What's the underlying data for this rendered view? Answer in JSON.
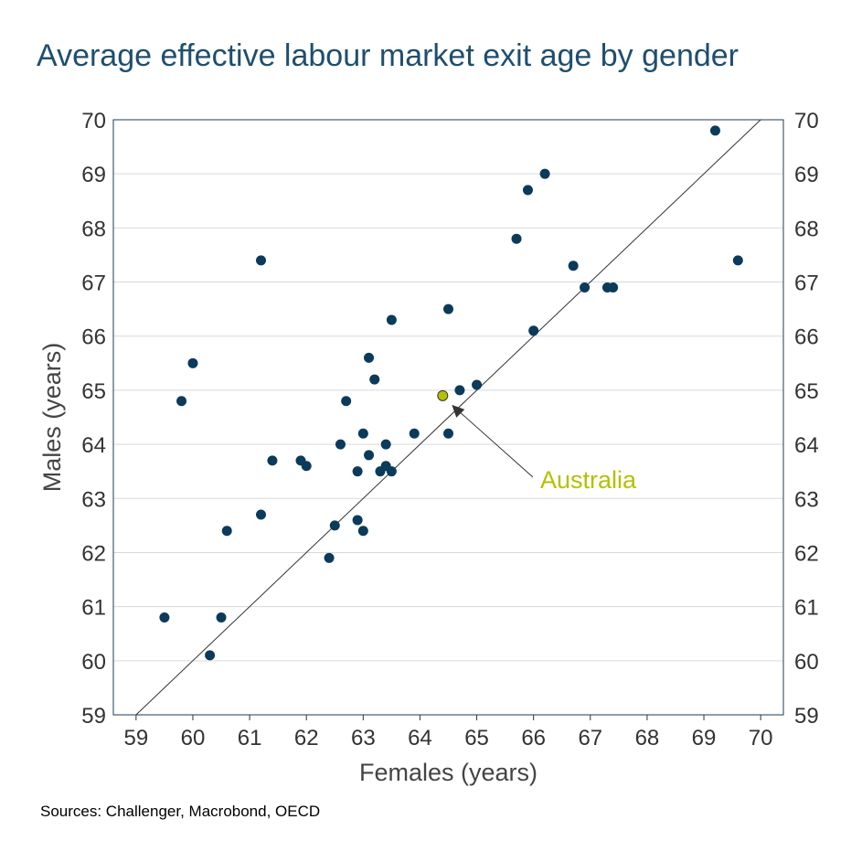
{
  "title": "Average effective labour market exit age by gender",
  "source": "Sources: Challenger, Macrobond, OECD",
  "chart_data": {
    "type": "scatter",
    "title": "Average effective labour market exit age by gender",
    "xlabel": "Females (years)",
    "ylabel": "Males (years)",
    "xlim": [
      58.6,
      70.4
    ],
    "ylim": [
      59,
      70
    ],
    "xticks": [
      59,
      60,
      61,
      62,
      63,
      64,
      65,
      66,
      67,
      68,
      69,
      70
    ],
    "yticks": [
      59,
      60,
      61,
      62,
      63,
      64,
      65,
      66,
      67,
      68,
      69,
      70
    ],
    "grid": "horizontal",
    "reference_line": {
      "from": [
        59,
        59
      ],
      "to": [
        70,
        70
      ]
    },
    "colors": {
      "points": "#0c3a5b",
      "highlight": "#b5c000",
      "title": "#1f4e6e"
    },
    "points": [
      [
        69.2,
        69.8
      ],
      [
        66.2,
        69.0
      ],
      [
        65.9,
        68.7
      ],
      [
        65.7,
        67.8
      ],
      [
        66.7,
        67.3
      ],
      [
        69.6,
        67.4
      ],
      [
        66.9,
        66.9
      ],
      [
        67.3,
        66.9
      ],
      [
        67.4,
        66.9
      ],
      [
        61.2,
        67.4
      ],
      [
        64.5,
        66.5
      ],
      [
        63.5,
        66.3
      ],
      [
        66.0,
        66.1
      ],
      [
        60.0,
        65.5
      ],
      [
        63.1,
        65.6
      ],
      [
        63.2,
        65.2
      ],
      [
        59.8,
        64.8
      ],
      [
        62.7,
        64.8
      ],
      [
        65.0,
        65.1
      ],
      [
        64.7,
        65.0
      ],
      [
        63.0,
        64.2
      ],
      [
        63.9,
        64.2
      ],
      [
        64.5,
        64.2
      ],
      [
        62.6,
        64.0
      ],
      [
        63.4,
        64.0
      ],
      [
        61.4,
        63.7
      ],
      [
        61.9,
        63.7
      ],
      [
        62.0,
        63.6
      ],
      [
        63.1,
        63.8
      ],
      [
        62.9,
        63.5
      ],
      [
        63.3,
        63.5
      ],
      [
        63.4,
        63.6
      ],
      [
        63.5,
        63.5
      ],
      [
        61.2,
        62.7
      ],
      [
        62.9,
        62.6
      ],
      [
        62.5,
        62.5
      ],
      [
        63.0,
        62.4
      ],
      [
        60.6,
        62.4
      ],
      [
        62.4,
        61.9
      ],
      [
        59.5,
        60.8
      ],
      [
        60.5,
        60.8
      ],
      [
        60.3,
        60.1
      ]
    ],
    "highlight": {
      "label": "Australia",
      "x": 64.4,
      "y": 64.9
    }
  }
}
